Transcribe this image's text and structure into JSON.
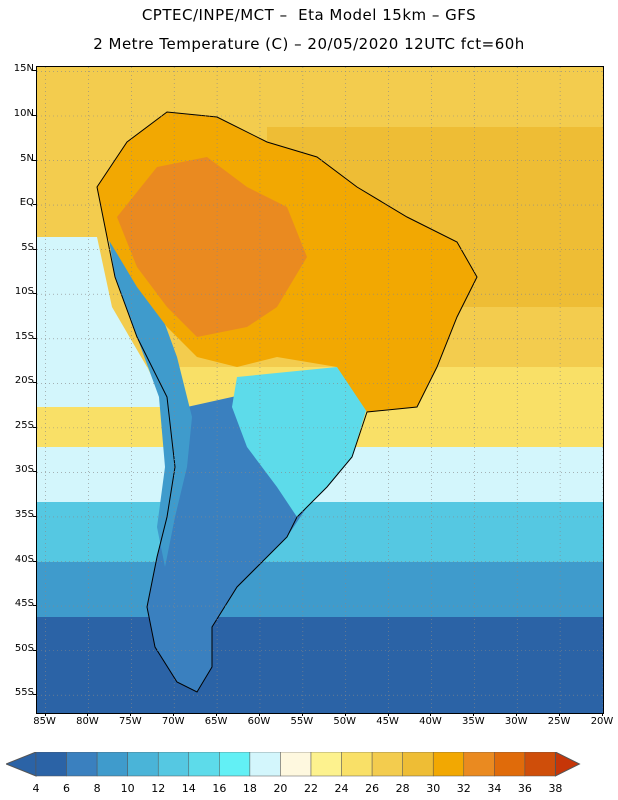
{
  "header": {
    "title": "CPTEC/INPE/MCT –  Eta Model 15km – GFS",
    "subtitle": "2 Metre Temperature (C) – 20/05/2020 12UTC fct=60h"
  },
  "axes": {
    "lat_labels": [
      "15N",
      "10N",
      "5N",
      "EQ",
      "5S",
      "10S",
      "15S",
      "20S",
      "25S",
      "30S",
      "35S",
      "40S",
      "45S",
      "50S",
      "55S"
    ],
    "lon_labels": [
      "85W",
      "80W",
      "75W",
      "70W",
      "65W",
      "60W",
      "55W",
      "50W",
      "45W",
      "40W",
      "35W",
      "30W",
      "25W",
      "20W"
    ]
  },
  "legend": {
    "labels": [
      "4",
      "6",
      "8",
      "10",
      "12",
      "14",
      "16",
      "18",
      "20",
      "22",
      "24",
      "26",
      "28",
      "30",
      "32",
      "34",
      "36",
      "38"
    ],
    "colors": [
      "#2b63a6",
      "#3a80bf",
      "#3f9bcc",
      "#4ab4d8",
      "#55c8e2",
      "#5ddbea",
      "#62f0f5",
      "#d3f6fc",
      "#fef8df",
      "#fdf28e",
      "#f9e067",
      "#f3cc4e",
      "#eebd35",
      "#f2a802",
      "#ea8a20",
      "#e06b0a",
      "#cf4e0a",
      "#c63608"
    ]
  },
  "map": {
    "colors": {
      "ocean_north": "#f3cc4e",
      "ocean_warm": "#eebd35",
      "ocean_mid": "#f9e067",
      "ocean_cool": "#d3f6fc",
      "ocean_cold": "#55c8e2",
      "ocean_colder": "#3f9bcc",
      "ocean_south": "#2b63a6",
      "amazon": "#f2a802",
      "amazon_hot": "#ea8a20",
      "andes": "#3f9bcc",
      "patagonia": "#3a80bf",
      "south_brazil": "#5ddbea"
    }
  }
}
